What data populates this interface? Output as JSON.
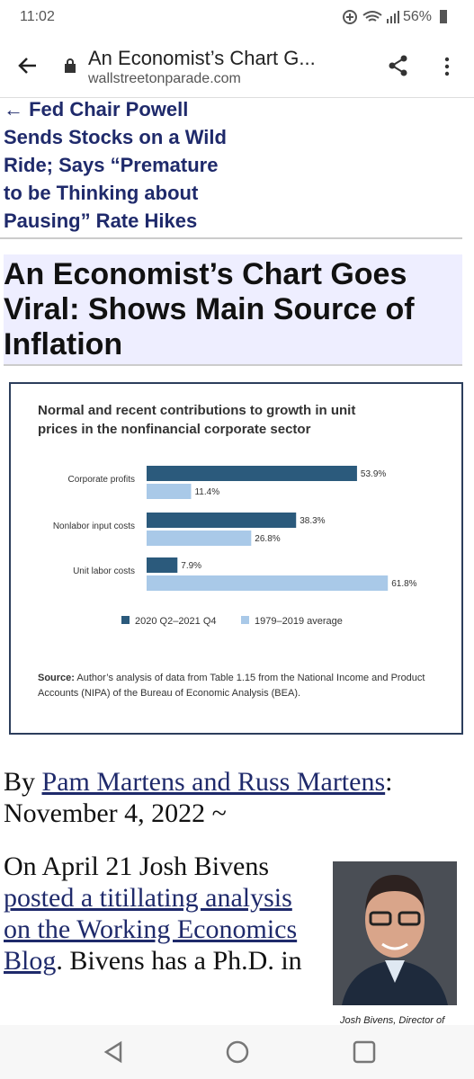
{
  "status_bar": {
    "time": "11:02",
    "battery": "56%"
  },
  "browser": {
    "title": "An Economist’s Chart G...",
    "url": "wallstreetonparade.com"
  },
  "prev_link": {
    "lines": [
      "← Fed Chair Powell",
      "Sends Stocks on a Wild",
      "Ride; Says “Premature",
      "to be Thinking about",
      "Pausing” Rate Hikes"
    ]
  },
  "article": {
    "title_lines": [
      "An Economist’s Chart Goes",
      "Viral: Shows Main Source of",
      "Inflation"
    ],
    "byline": {
      "prefix": "By ",
      "authors": "Pam Martens and Russ Martens",
      "date": ": November 4, 2022 ~"
    },
    "paragraph": {
      "start": "On April 21 Josh Bivens ",
      "link": "posted a titillating analysis on the Working Economics Blog",
      "end": ". Bivens has a Ph.D. in"
    },
    "photo_caption": "Josh Bivens, Director of"
  },
  "chart_data": {
    "type": "bar",
    "orientation": "horizontal",
    "title": "Normal and recent contributions to growth in unit prices in the nonfinancial corporate sector",
    "categories": [
      "Corporate profits",
      "Nonlabor input costs",
      "Unit labor costs"
    ],
    "series": [
      {
        "name": "2020 Q2–2021 Q4",
        "color": "#2b5a7c",
        "values": [
          53.9,
          38.3,
          7.9
        ],
        "value_labels": [
          "53.9%",
          "38.3%",
          "7.9%"
        ]
      },
      {
        "name": "1979–2019 average",
        "color": "#a9c9e8",
        "values": [
          11.4,
          26.8,
          61.8
        ],
        "value_labels": [
          "11.4%",
          "26.8%",
          "61.8%"
        ]
      }
    ],
    "source_label": "Source:",
    "source_text": "Author’s analysis of data from Table 1.15 from the National Income and Product Accounts (NIPA) of the Bureau of Economic Analysis (BEA)."
  }
}
